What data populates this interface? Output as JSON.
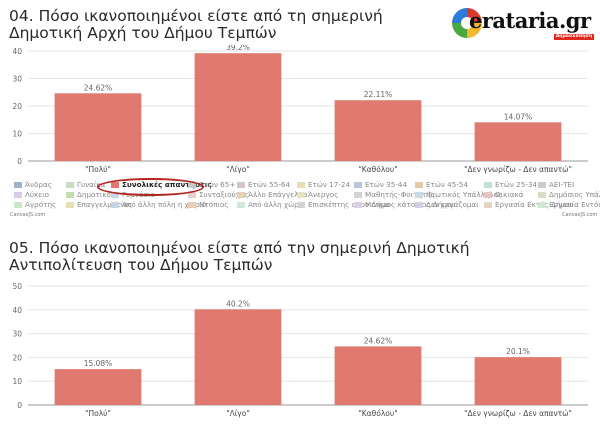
{
  "header": {
    "title1": "04. Πόσο ικανοποιημένοι είστε από τη σημερινή Δημοτική Αρχή του Δήμου Τεμπών",
    "title2": "05. Πόσο ικανοποιημένοι είστε από την σημερινή Δημοτική Αντιπολίτευση του Δήμου Τεμπών"
  },
  "logo": {
    "text": "erataria.gr",
    "strip": "Δημοσκόπηση"
  },
  "credit": {
    "left": "CanvasJS.com",
    "right": "CanvasJS.com"
  },
  "legend": {
    "items": [
      {
        "label": "Άνδρας",
        "color": "#9fb2c9"
      },
      {
        "label": "Γυναίκα",
        "color": "#c7dcc0"
      },
      {
        "label": "Συνολικές απαντήσεις",
        "color": "#e07a70",
        "active": true
      },
      {
        "label": "Ετών 65+",
        "color": "#c9c9c9"
      },
      {
        "label": "Ετών 55-64",
        "color": "#d4c6c6"
      },
      {
        "label": "Ετών 17-24",
        "color": "#e6dfb3"
      },
      {
        "label": "Ετών 35-44",
        "color": "#b9c6d8"
      },
      {
        "label": "Ετών 45-54",
        "color": "#e6c9a6"
      },
      {
        "label": "Ετών 25-34",
        "color": "#c5e0d6"
      },
      {
        "label": "ΑΕΙ-ΤΕΙ",
        "color": "#cccccc"
      },
      {
        "label": "Λύκειο",
        "color": "#d7cbe6"
      },
      {
        "label": "Δημοτικό",
        "color": "#c4dcb2"
      },
      {
        "label": "Γυμνάσιο",
        "color": "#c9d6e6"
      },
      {
        "label": "Συνταξιούχος",
        "color": "#e6cfcf"
      },
      {
        "label": "Άλλο Επάγγελμα",
        "color": "#e6d2b3"
      },
      {
        "label": "Άνεργος",
        "color": "#eae3c0"
      },
      {
        "label": "Μαθητής-Φοιτητής",
        "color": "#d3d3d3"
      },
      {
        "label": "Ιδιωτικός Υπάλληλος",
        "color": "#c9dce6"
      },
      {
        "label": "Οικιακά",
        "color": "#e6c4c4"
      },
      {
        "label": "Δημόσιος Υπάλληλος",
        "color": "#d6dcc6"
      },
      {
        "label": "Αγρότης",
        "color": "#c9e6c9"
      },
      {
        "label": "Επαγγελματίας",
        "color": "#e6e0b6"
      },
      {
        "label": "Από άλλη πόλη η χωριό",
        "color": "#c7d4e6"
      },
      {
        "label": "Ντόπιος",
        "color": "#e6cfb6"
      },
      {
        "label": "Από άλλη χώρα",
        "color": "#cfe6d9"
      },
      {
        "label": "Επισκέπτης στον Δήμο",
        "color": "#d3d3d3"
      },
      {
        "label": "Μόνιμος κάτοικος Δήμου",
        "color": "#dccfe6"
      },
      {
        "label": "Δεν εργάζομαι",
        "color": "#d7cfe6"
      },
      {
        "label": "Εργασία Εκτός Δήμου",
        "color": "#e6d4c4"
      },
      {
        "label": "Εργασία Εντός Δήμου",
        "color": "#cfe6cf"
      }
    ]
  },
  "chart_data": [
    {
      "type": "bar",
      "title": "04. Πόσο ικανοποιημένοι είστε από τη σημερινή Δημοτική Αρχή του Δήμου Τεμπών",
      "categories": [
        "\"Πολύ\"",
        "\"Λίγο\"",
        "\"Καθόλου\"",
        "\"Δεν γνωρίζω - Δεν απαντώ\""
      ],
      "series": [
        {
          "name": "Συνολικές απαντήσεις",
          "values": [
            24.62,
            39.2,
            22.11,
            14.07
          ]
        }
      ],
      "data_labels": [
        "24.62%",
        "39.2%",
        "22.11%",
        "14.07%"
      ],
      "yticks": [
        "0",
        "10",
        "20",
        "30",
        "40"
      ],
      "ylim": [
        0,
        40
      ],
      "bar_color": "#e07a70",
      "grid": true
    },
    {
      "type": "bar",
      "title": "05. Πόσο ικανοποιημένοι είστε από την σημερινή Δημοτική Αντιπολίτευση του Δήμου Τεμπών",
      "categories": [
        "\"Πολύ\"",
        "\"Λίγο\"",
        "\"Καθόλου\"",
        "\"Δεν γνωρίζω - Δεν απαντώ\""
      ],
      "series": [
        {
          "name": "Συνολικές απαντήσεις",
          "values": [
            15.08,
            40.2,
            24.62,
            20.1
          ]
        }
      ],
      "data_labels": [
        "15.08%",
        "40.2%",
        "24.62%",
        "20.1%"
      ],
      "yticks": [
        "0",
        "10",
        "20",
        "30",
        "40",
        "50"
      ],
      "ylim": [
        0,
        50
      ],
      "bar_color": "#e07a70",
      "grid": true
    }
  ]
}
